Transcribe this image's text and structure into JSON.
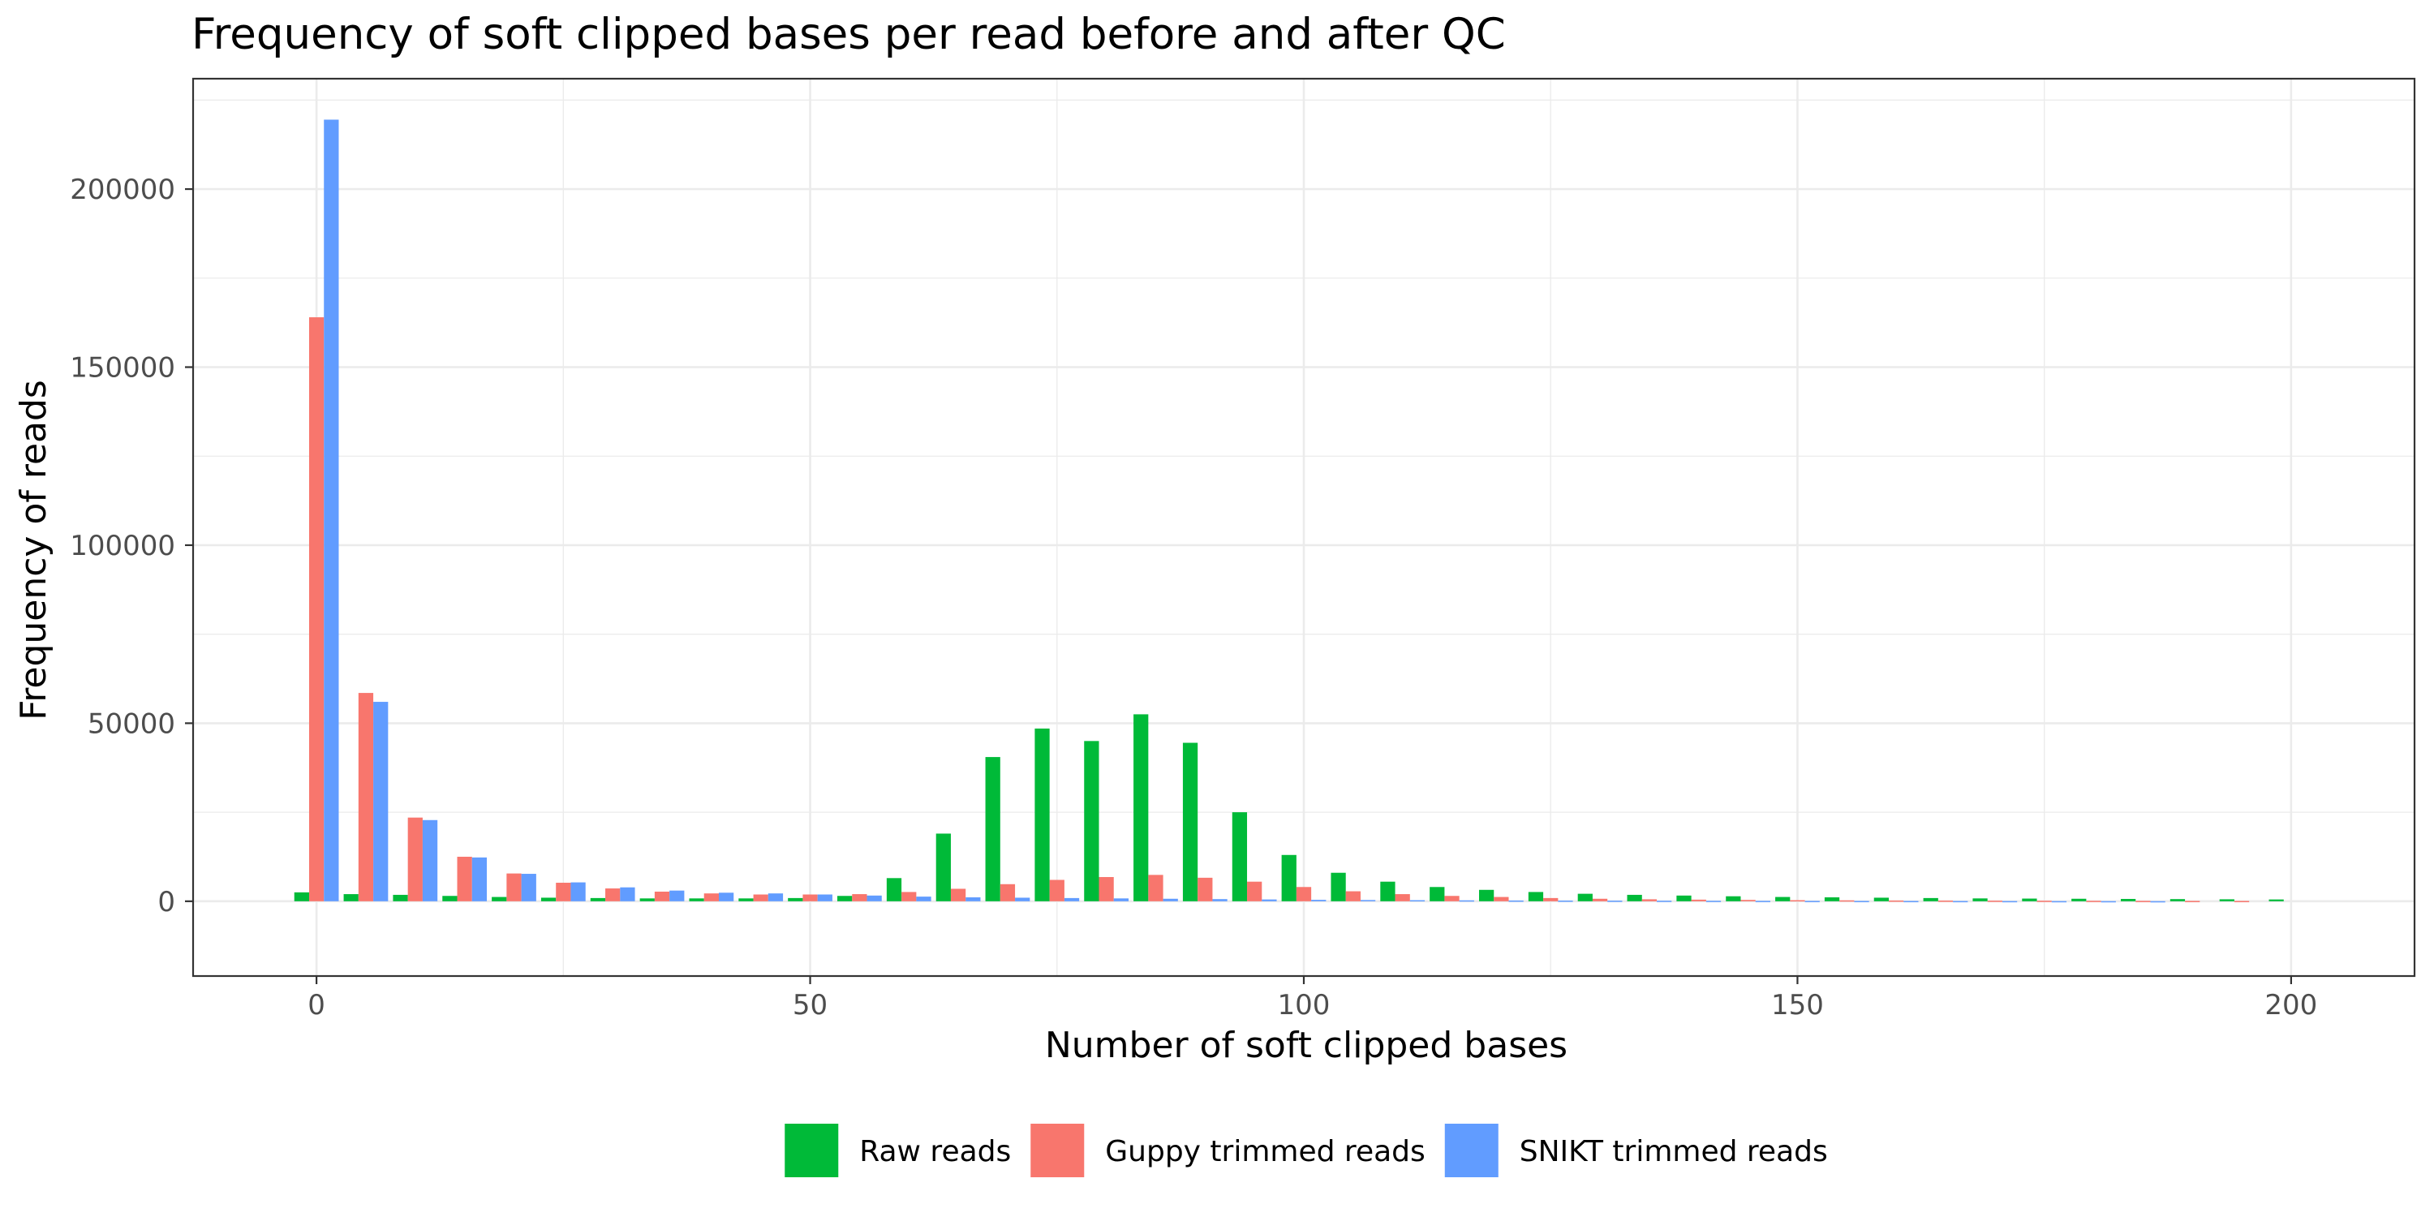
{
  "chart_data": {
    "type": "bar",
    "title": "Frequency of soft clipped bases per read before and after QC",
    "xlabel": "Number of soft clipped bases",
    "ylabel": "Frequency of reads",
    "xlim": [
      -12.5,
      212.5
    ],
    "ylim": [
      -21000,
      231000
    ],
    "x_ticks": [
      0,
      50,
      100,
      150,
      200
    ],
    "y_ticks": [
      0,
      50000,
      100000,
      150000,
      200000
    ],
    "x_tick_labels": [
      "0",
      "50",
      "100",
      "150",
      "200"
    ],
    "y_tick_labels": [
      "0",
      "50000",
      "100000",
      "150000",
      "200000"
    ],
    "bin_width": 5,
    "grid": true,
    "legend_position": "bottom",
    "x": [
      0,
      5,
      10,
      15,
      20,
      25,
      30,
      35,
      40,
      45,
      50,
      55,
      60,
      65,
      70,
      75,
      80,
      85,
      90,
      95,
      100,
      105,
      110,
      115,
      120,
      125,
      130,
      135,
      140,
      145,
      150,
      155,
      160,
      165,
      170,
      175,
      180,
      185,
      190,
      195,
      200
    ],
    "series": [
      {
        "name": "Raw reads",
        "color": "#00ba38",
        "values": [
          2500,
          2000,
          1800,
          1500,
          1200,
          1000,
          900,
          800,
          800,
          800,
          900,
          1500,
          6500,
          19000,
          40500,
          48500,
          45000,
          52500,
          44500,
          25000,
          13000,
          8000,
          5500,
          4000,
          3200,
          2600,
          2100,
          1800,
          1600,
          1400,
          1200,
          1100,
          1000,
          900,
          800,
          750,
          700,
          650,
          600,
          550,
          500
        ]
      },
      {
        "name": "Guppy trimmed reads",
        "color": "#f8766d",
        "values": [
          164000,
          58500,
          23500,
          12500,
          7800,
          5200,
          3600,
          2700,
          2200,
          1900,
          1900,
          2000,
          2600,
          3500,
          4800,
          6000,
          6800,
          7400,
          6600,
          5500,
          4000,
          2800,
          2000,
          1500,
          1200,
          900,
          700,
          550,
          450,
          380,
          300,
          250,
          200,
          180,
          160,
          140,
          120,
          100,
          90,
          80,
          0
        ]
      },
      {
        "name": "SNIKT trimmed reads",
        "color": "#619cff",
        "values": [
          219500,
          56000,
          22800,
          12300,
          7700,
          5300,
          3900,
          3000,
          2400,
          2200,
          1900,
          1600,
          1300,
          1100,
          1000,
          900,
          800,
          700,
          600,
          500,
          400,
          350,
          300,
          250,
          200,
          180,
          160,
          140,
          120,
          100,
          90,
          80,
          70,
          60,
          50,
          40,
          30,
          20,
          0,
          0,
          0
        ]
      }
    ]
  }
}
